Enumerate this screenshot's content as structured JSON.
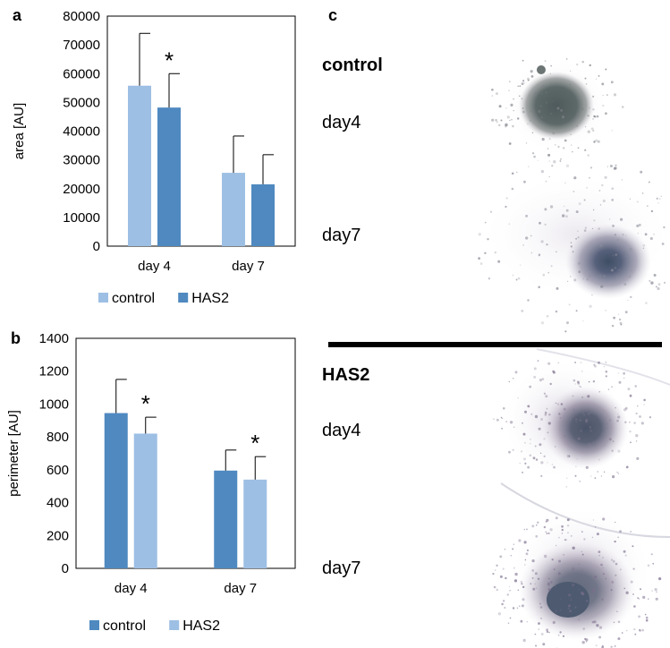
{
  "panels": {
    "a": "a",
    "b": "b",
    "c": "c"
  },
  "colors": {
    "light_blue": "#9dbfe4",
    "dark_blue": "#4f89c0",
    "axis": "#7f7f7f"
  },
  "chart_data": [
    {
      "type": "bar",
      "panel": "a",
      "title": "",
      "xlabel": "",
      "ylabel": "area [AU]",
      "ylim": [
        0,
        80000
      ],
      "yticks": [
        0,
        10000,
        20000,
        30000,
        40000,
        50000,
        60000,
        70000,
        80000
      ],
      "categories": [
        "day 4",
        "day 7"
      ],
      "series": [
        {
          "name": "control",
          "color": "#9dbfe4",
          "values": [
            55800,
            25500
          ],
          "errors": [
            18200,
            12800
          ]
        },
        {
          "name": "HAS2",
          "color": "#4f89c0",
          "values": [
            48200,
            21500
          ],
          "errors": [
            11800,
            10300
          ]
        }
      ],
      "significance": [
        {
          "category": "day 4",
          "series": "HAS2",
          "mark": "*"
        }
      ],
      "grid": false,
      "legend_position": "bottom"
    },
    {
      "type": "bar",
      "panel": "b",
      "title": "",
      "xlabel": "",
      "ylabel": "perimeter [AU]",
      "ylim": [
        0,
        1400
      ],
      "yticks": [
        0,
        200,
        400,
        600,
        800,
        1000,
        1200,
        1400
      ],
      "categories": [
        "day 4",
        "day 7"
      ],
      "series": [
        {
          "name": "control",
          "color": "#4f89c0",
          "values": [
            945,
            595
          ],
          "errors": [
            205,
            125
          ]
        },
        {
          "name": "HAS2",
          "color": "#9dbfe4",
          "values": [
            820,
            540
          ],
          "errors": [
            100,
            140
          ]
        }
      ],
      "significance": [
        {
          "category": "day 4",
          "series": "HAS2",
          "mark": "*"
        },
        {
          "category": "day 7",
          "series": "HAS2",
          "mark": "*"
        }
      ],
      "grid": false,
      "legend_position": "bottom"
    }
  ],
  "micrographs": {
    "groups": [
      {
        "label": "control",
        "rows": [
          {
            "label": "day4"
          },
          {
            "label": "day7"
          }
        ]
      },
      {
        "label": "HAS2",
        "rows": [
          {
            "label": "day4"
          },
          {
            "label": "day7"
          }
        ]
      }
    ]
  }
}
